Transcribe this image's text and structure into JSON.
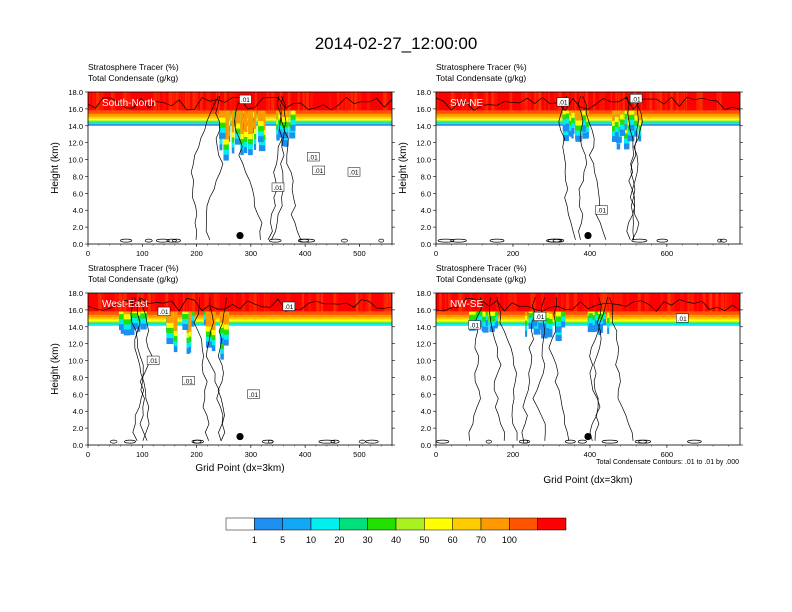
{
  "title": "2014-02-27_12:00:00",
  "footnote": "Total Condensate Contours: .01 to .01 by .000",
  "colorbar": {
    "labels": [
      "1",
      "5",
      "10",
      "20",
      "30",
      "40",
      "50",
      "60",
      "70",
      "100"
    ],
    "colors": [
      "#ffffff",
      "#1e8ef0",
      "#13a8f5",
      "#00f0f0",
      "#00e07a",
      "#22e000",
      "#a8f020",
      "#ffff00",
      "#ffcc00",
      "#ff9900",
      "#ff5500",
      "#ff0000"
    ]
  },
  "chart_data": [
    {
      "type": "heatmap",
      "panel_label": "South-North",
      "subtitle_line1": "Stratosphere Tracer   (%)",
      "subtitle_line2": "Total Condensate   (g/kg)",
      "ylabel": "Height (km)",
      "xlabel": "",
      "xlim": [
        0,
        560
      ],
      "ylim": [
        0,
        18
      ],
      "xticks": [
        "0",
        "100",
        "200",
        "300",
        "400",
        "500"
      ],
      "yticks": [
        "0.0",
        "2.0",
        "4.0",
        "6.0",
        "8.0",
        "10.0",
        "12.0",
        "14.0",
        "16.0",
        "18.0"
      ],
      "tracer_100_base_km": 15.8,
      "tracer_base_km": 14.0,
      "marker": {
        "x": 280,
        "y": 1.0
      },
      "contour_labels": [
        {
          "x": 290,
          "y": 17.1,
          "text": ".01"
        },
        {
          "x": 415,
          "y": 10.3,
          "text": ".01"
        },
        {
          "x": 425,
          "y": 8.7,
          "text": ".01"
        },
        {
          "x": 350,
          "y": 6.7,
          "text": ".01"
        },
        {
          "x": 490,
          "y": 8.5,
          "text": ".01"
        }
      ]
    },
    {
      "type": "heatmap",
      "panel_label": "SW-NE",
      "subtitle_line1": "Stratosphere Tracer   (%)",
      "subtitle_line2": "Total Condensate   (g/kg)",
      "ylabel": "Height (km)",
      "xlabel": "",
      "xlim": [
        0,
        790
      ],
      "ylim": [
        0,
        18
      ],
      "xticks": [
        "0",
        "200",
        "400",
        "600"
      ],
      "yticks": [
        "0.0",
        "2.0",
        "4.0",
        "6.0",
        "8.0",
        "10.0",
        "12.0",
        "14.0",
        "16.0",
        "18.0"
      ],
      "tracer_100_base_km": 15.8,
      "tracer_base_km": 14.0,
      "marker": {
        "x": 395,
        "y": 1.0
      },
      "contour_labels": [
        {
          "x": 330,
          "y": 16.8,
          "text": ".01"
        },
        {
          "x": 520,
          "y": 17.2,
          "text": ".01"
        },
        {
          "x": 430,
          "y": 4.0,
          "text": ".01"
        }
      ]
    },
    {
      "type": "heatmap",
      "panel_label": "West-East",
      "subtitle_line1": "Stratosphere Tracer   (%)",
      "subtitle_line2": "Total Condensate   (g/kg)",
      "ylabel": "Height (km)",
      "xlabel": "Grid Point (dx=3km)",
      "xlim": [
        0,
        560
      ],
      "ylim": [
        0,
        18
      ],
      "xticks": [
        "0",
        "100",
        "200",
        "300",
        "400",
        "500"
      ],
      "yticks": [
        "0.0",
        "2.0",
        "4.0",
        "6.0",
        "8.0",
        "10.0",
        "12.0",
        "14.0",
        "16.0",
        "18.0"
      ],
      "tracer_100_base_km": 15.8,
      "tracer_base_km": 14.2,
      "marker": {
        "x": 280,
        "y": 1.0
      },
      "contour_labels": [
        {
          "x": 140,
          "y": 15.8,
          "text": ".01"
        },
        {
          "x": 370,
          "y": 16.4,
          "text": ".01"
        },
        {
          "x": 120,
          "y": 10.0,
          "text": ".01"
        },
        {
          "x": 185,
          "y": 7.6,
          "text": ".01"
        },
        {
          "x": 305,
          "y": 6.0,
          "text": ".01"
        }
      ]
    },
    {
      "type": "heatmap",
      "panel_label": "NW-SE",
      "subtitle_line1": "Stratosphere Tracer   (%)",
      "subtitle_line2": "Total Condensate   (g/kg)",
      "ylabel": "",
      "xlabel": "Grid Point (dx=3km)",
      "xlim": [
        0,
        790
      ],
      "ylim": [
        0,
        18
      ],
      "xticks": [
        "0",
        "200",
        "400",
        "600"
      ],
      "yticks": [
        "0.0",
        "2.0",
        "4.0",
        "6.0",
        "8.0",
        "10.0",
        "12.0",
        "14.0",
        "16.0",
        "18.0"
      ],
      "tracer_100_base_km": 15.8,
      "tracer_base_km": 14.2,
      "marker": {
        "x": 395,
        "y": 1.0
      },
      "contour_labels": [
        {
          "x": 100,
          "y": 14.2,
          "text": ".01"
        },
        {
          "x": 270,
          "y": 15.2,
          "text": ".01"
        },
        {
          "x": 640,
          "y": 15.0,
          "text": ".01"
        }
      ]
    }
  ]
}
